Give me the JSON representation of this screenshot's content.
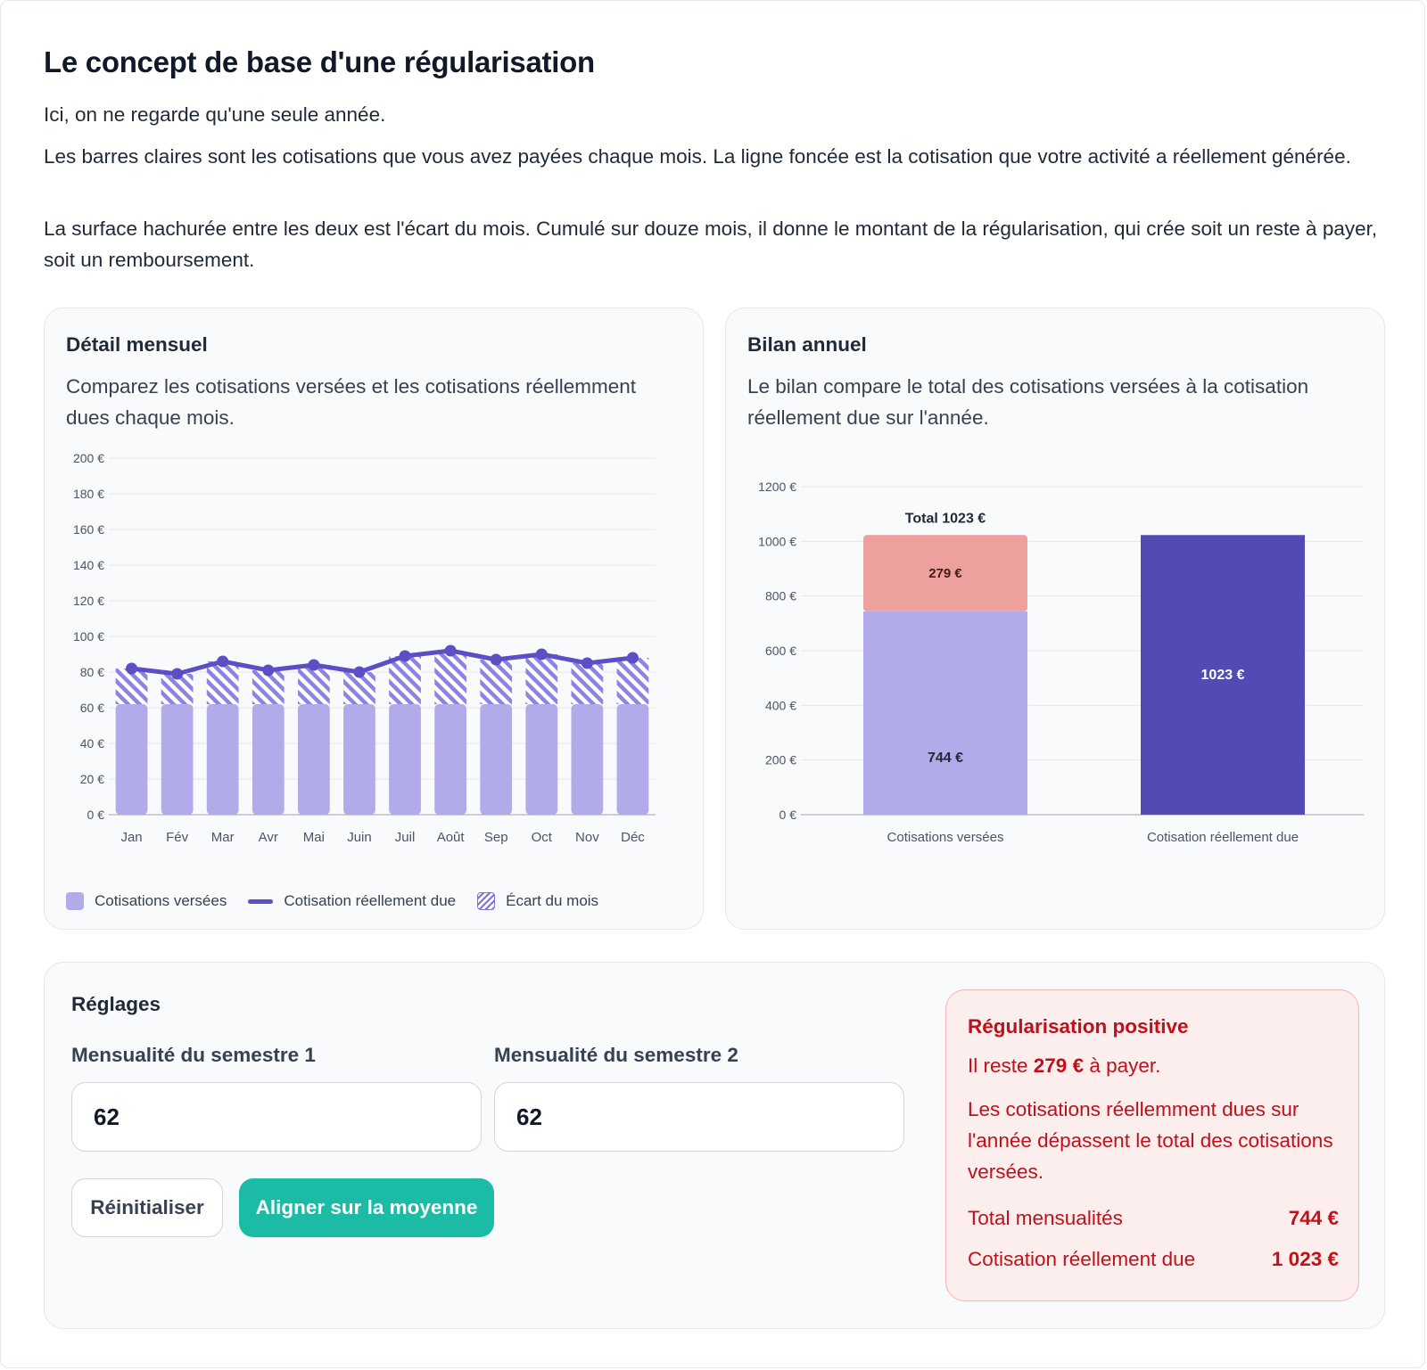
{
  "header": {
    "title": "Le concept de base d'une régularisation",
    "para1": "Ici, on ne regarde qu'une seule année.",
    "para2": "Les barres claires sont les cotisations que vous avez payées chaque mois. La ligne foncée est la cotisation que votre activité a réellement générée.",
    "para3": "La surface hachurée entre les deux est l'écart du mois. Cumulé sur douze mois, il donne le montant de la régularisation, qui crée soit un reste à payer, soit un remboursement."
  },
  "monthly": {
    "title": "Détail mensuel",
    "description": "Comparez les cotisations versées et les cotisations réellemment dues chaque mois.",
    "legend": {
      "paid": "Cotisations versées",
      "due": "Cotisation réellement due",
      "gap": "Écart du mois"
    }
  },
  "annual": {
    "title": "Bilan annuel",
    "description": "Le bilan compare le total des cotisations versées à la cotisation réellement due sur l'année."
  },
  "settings": {
    "title": "Réglages",
    "sem1_label": "Mensualité du semestre 1",
    "sem1_value": "62",
    "sem2_label": "Mensualité du semestre 2",
    "sem2_value": "62",
    "reset_label": "Réinitialiser",
    "align_label": "Aligner sur la moyenne"
  },
  "result": {
    "title": "Régularisation positive",
    "line_prefix": "Il reste ",
    "line_amount": "279 €",
    "line_suffix": " à payer.",
    "explanation": "Les cotisations réellemment dues sur l'année dépassent le total des cotisations versées.",
    "total_label": "Total mensualités",
    "total_value": "744 €",
    "due_label": "Cotisation réellement due",
    "due_value": "1 023 €"
  },
  "colors": {
    "paid": "#b2abea",
    "due": "#5b4fc5",
    "gap_red": "#eda09d",
    "annual_due": "#524bb4",
    "accent": "#1bbba6",
    "alert": "#c0101a"
  },
  "chart_data": [
    {
      "type": "bar",
      "categories": [
        "Jan",
        "Fév",
        "Mar",
        "Avr",
        "Mai",
        "Juin",
        "Juil",
        "Août",
        "Sep",
        "Oct",
        "Nov",
        "Déc"
      ],
      "series": [
        {
          "name": "Cotisations versées",
          "type": "bar",
          "values": [
            62,
            62,
            62,
            62,
            62,
            62,
            62,
            62,
            62,
            62,
            62,
            62
          ]
        },
        {
          "name": "Cotisation réellement due",
          "type": "line",
          "values": [
            82,
            79,
            86,
            81,
            84,
            80,
            89,
            92,
            87,
            90,
            85,
            88
          ]
        }
      ],
      "ylim": [
        0,
        200
      ],
      "yticks": [
        0,
        20,
        40,
        60,
        80,
        100,
        120,
        140,
        160,
        180,
        200
      ],
      "ytick_suffix": " €",
      "grid": true
    },
    {
      "type": "bar",
      "stacked": true,
      "categories": [
        "Cotisations versées",
        "Cotisation réellement due"
      ],
      "series": [
        {
          "name": "",
          "values": [
            744,
            1023
          ],
          "labels": [
            "744 €",
            "1023 €"
          ]
        },
        {
          "name": "",
          "values": [
            279,
            0
          ],
          "labels": [
            "279 €",
            ""
          ]
        }
      ],
      "annotations": [
        {
          "category": "Cotisations versées",
          "text": "Total 1023 €"
        }
      ],
      "ylim": [
        0,
        1200
      ],
      "yticks": [
        0,
        200,
        400,
        600,
        800,
        1000,
        1200
      ],
      "ytick_suffix": " €",
      "grid": true
    }
  ]
}
